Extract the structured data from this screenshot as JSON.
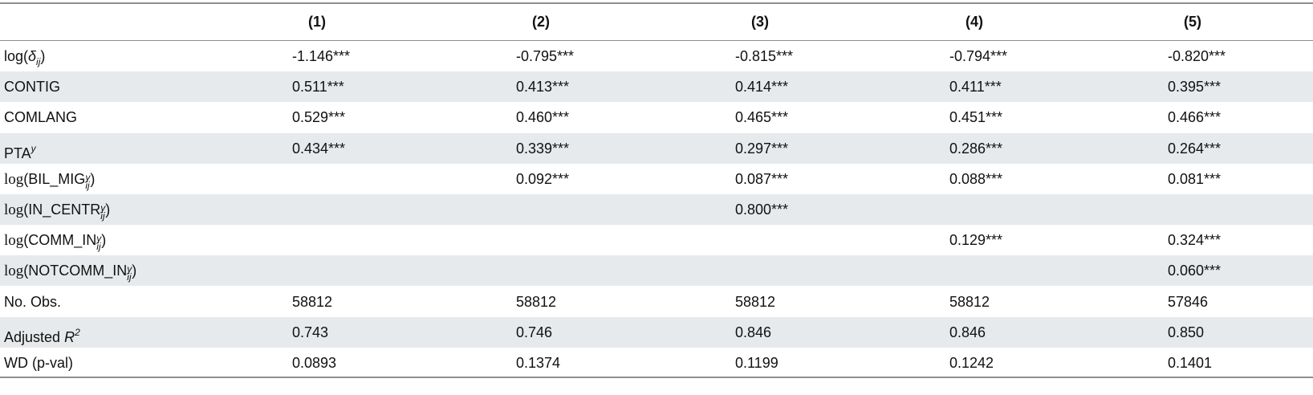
{
  "table": {
    "header": [
      "(1)",
      "(2)",
      "(3)",
      "(4)",
      "(5)"
    ],
    "rows": [
      {
        "label": [
          {
            "text": "log(",
            "style": "normal"
          },
          {
            "text": "δ",
            "style": "italic"
          },
          {
            "text": "ij",
            "style": "sub"
          },
          {
            "text": ")",
            "style": "normal"
          }
        ],
        "cells": [
          "-1.146***",
          "-0.795***",
          "-0.815***",
          "-0.794***",
          "-0.820***"
        ]
      },
      {
        "label": [
          {
            "text": "CONTIG",
            "style": "normal"
          }
        ],
        "cells": [
          "0.511***",
          "0.413***",
          "0.414***",
          "0.411***",
          "0.395***"
        ]
      },
      {
        "label": [
          {
            "text": "COMLANG",
            "style": "normal"
          }
        ],
        "cells": [
          "0.529***",
          "0.460***",
          "0.465***",
          "0.451***",
          "0.466***"
        ]
      },
      {
        "label": [
          {
            "text": "PTA",
            "style": "normal"
          },
          {
            "text": "y",
            "style": "sup"
          }
        ],
        "cells": [
          "0.434***",
          "0.339***",
          "0.297***",
          "0.286***",
          "0.264***"
        ]
      },
      {
        "label": [
          {
            "text": "log",
            "style": "serif"
          },
          {
            "text": "(BIL_MIG",
            "style": "normal"
          },
          {
            "text": "y",
            "style": "supsub"
          },
          {
            "text": "ij",
            "style": "subsup"
          },
          {
            "text": ")",
            "style": "normal"
          }
        ],
        "cells": [
          null,
          "0.092***",
          "0.087***",
          "0.088***",
          "0.081***"
        ]
      },
      {
        "label": [
          {
            "text": "log",
            "style": "serif"
          },
          {
            "text": "(IN_CENTR",
            "style": "normal"
          },
          {
            "text": "y",
            "style": "supsub"
          },
          {
            "text": "ij",
            "style": "subsup"
          },
          {
            "text": ")",
            "style": "normal"
          }
        ],
        "cells": [
          null,
          null,
          "0.800***",
          null,
          null
        ]
      },
      {
        "label": [
          {
            "text": "log",
            "style": "serif"
          },
          {
            "text": "(COMM_IN",
            "style": "normal"
          },
          {
            "text": "y",
            "style": "supsub"
          },
          {
            "text": "ij",
            "style": "subsup"
          },
          {
            "text": ")",
            "style": "normal"
          }
        ],
        "cells": [
          null,
          null,
          null,
          "0.129***",
          "0.324***"
        ]
      },
      {
        "label": [
          {
            "text": "log",
            "style": "serif"
          },
          {
            "text": "(NOTCOMM_IN",
            "style": "normal"
          },
          {
            "text": "y",
            "style": "supsub"
          },
          {
            "text": "ij",
            "style": "subsup"
          },
          {
            "text": ")",
            "style": "normal"
          }
        ],
        "cells": [
          null,
          null,
          null,
          null,
          "0.060***"
        ]
      },
      {
        "label": [
          {
            "text": "No. Obs.",
            "style": "normal"
          }
        ],
        "cells": [
          "58812",
          "58812",
          "58812",
          "58812",
          "57846"
        ]
      },
      {
        "label": [
          {
            "text": "Adjusted ",
            "style": "normal"
          },
          {
            "text": "R",
            "style": "italic"
          },
          {
            "text": "2",
            "style": "sup"
          }
        ],
        "cells": [
          "0.743",
          "0.746",
          "0.846",
          "0.846",
          "0.850"
        ]
      },
      {
        "label": [
          {
            "text": "WD (p-val)",
            "style": "normal"
          }
        ],
        "cells": [
          "0.0893",
          "0.1374",
          "0.1199",
          "0.1242",
          "0.1401"
        ]
      }
    ]
  }
}
